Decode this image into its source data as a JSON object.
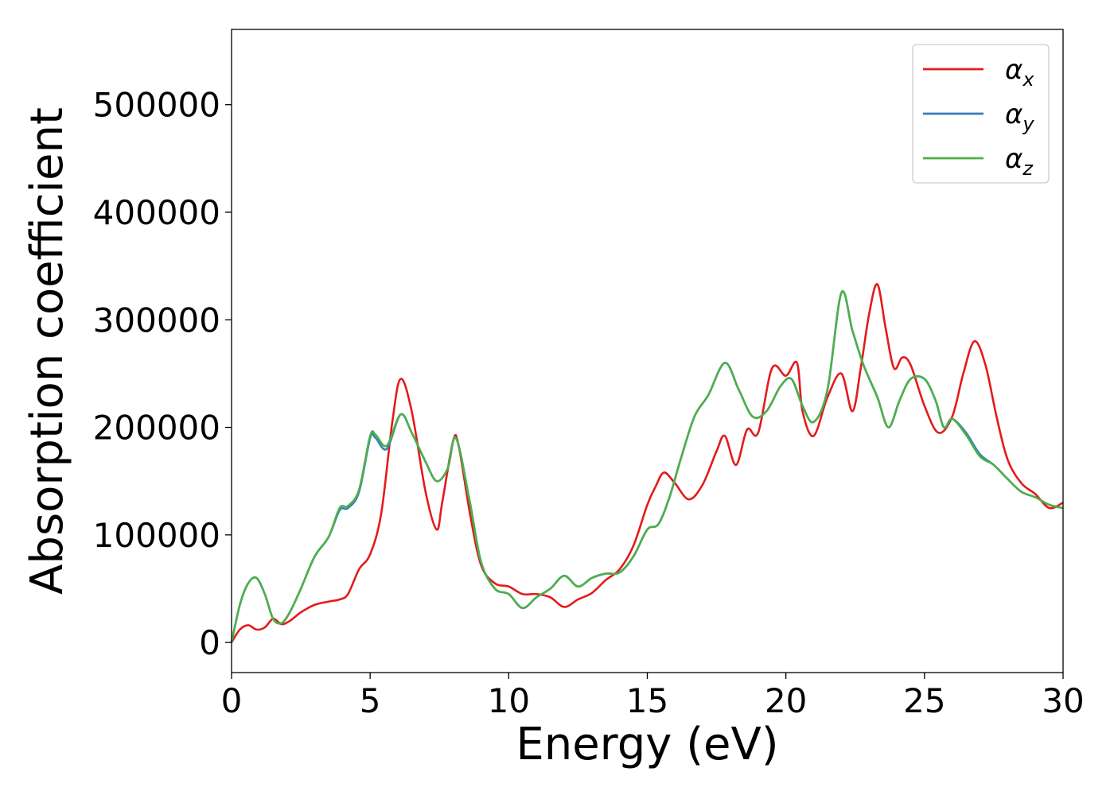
{
  "chart_data": {
    "type": "line",
    "xlabel": "Energy (eV)",
    "ylabel": "Absorption coefficient",
    "xlim": [
      0,
      30
    ],
    "ylim": [
      -28000,
      570000
    ],
    "xticks": [
      0,
      5,
      10,
      15,
      20,
      25,
      30
    ],
    "yticks": [
      0,
      100000,
      200000,
      300000,
      400000,
      500000
    ],
    "grid": false,
    "legend_position": "top-right",
    "series": [
      {
        "name": "αx",
        "base": "α",
        "sub": "x",
        "color": "#e41a1c",
        "x": [
          0,
          0.3,
          0.6,
          0.9,
          1.2,
          1.5,
          1.8,
          2.1,
          2.5,
          3.0,
          3.5,
          3.9,
          4.2,
          4.6,
          5.0,
          5.4,
          5.8,
          6.1,
          6.5,
          7.0,
          7.4,
          7.6,
          8.0,
          8.2,
          8.6,
          9.0,
          9.5,
          10.0,
          10.5,
          11.0,
          11.5,
          12.0,
          12.5,
          13.0,
          13.5,
          14.0,
          14.5,
          15.0,
          15.3,
          15.6,
          16.0,
          16.5,
          17.0,
          17.5,
          17.8,
          18.2,
          18.6,
          19.0,
          19.5,
          20.0,
          20.4,
          20.6,
          21.0,
          21.5,
          22.0,
          22.4,
          22.7,
          23.0,
          23.3,
          23.6,
          23.9,
          24.2,
          24.5,
          25.0,
          25.5,
          26.0,
          26.4,
          26.8,
          27.2,
          27.6,
          28.0,
          28.5,
          29.0,
          29.5,
          30.0
        ],
        "y": [
          0,
          12000,
          16000,
          12000,
          14000,
          22000,
          17000,
          20000,
          28000,
          35000,
          38000,
          40000,
          45000,
          68000,
          82000,
          120000,
          205000,
          245000,
          215000,
          140000,
          105000,
          130000,
          188000,
          182000,
          120000,
          72000,
          55000,
          52000,
          45000,
          45000,
          42000,
          33000,
          40000,
          46000,
          58000,
          68000,
          90000,
          128000,
          145000,
          158000,
          148000,
          133000,
          147000,
          178000,
          192000,
          165000,
          198000,
          195000,
          255000,
          248000,
          260000,
          215000,
          192000,
          228000,
          250000,
          215000,
          255000,
          305000,
          333000,
          292000,
          255000,
          265000,
          258000,
          220000,
          195000,
          210000,
          250000,
          280000,
          258000,
          210000,
          170000,
          148000,
          138000,
          125000,
          130000
        ]
      },
      {
        "name": "αy",
        "base": "α",
        "sub": "y",
        "color": "#377eb8",
        "x": [
          0,
          0.3,
          0.6,
          0.9,
          1.2,
          1.5,
          1.8,
          2.1,
          2.5,
          3.0,
          3.5,
          3.9,
          4.2,
          4.6,
          5.0,
          5.2,
          5.6,
          6.1,
          6.5,
          7.0,
          7.4,
          7.8,
          8.1,
          8.6,
          9.0,
          9.5,
          10.0,
          10.5,
          11.0,
          11.5,
          12.0,
          12.5,
          13.0,
          13.5,
          14.0,
          14.5,
          15.0,
          15.4,
          15.8,
          16.2,
          16.7,
          17.2,
          17.8,
          18.3,
          18.8,
          19.3,
          19.8,
          20.2,
          20.6,
          21.0,
          21.5,
          22.0,
          22.4,
          22.8,
          23.3,
          23.7,
          24.1,
          24.5,
          25.0,
          25.4,
          25.7,
          26.0,
          26.5,
          27.0,
          27.5,
          28.0,
          28.5,
          29.0,
          29.5,
          30.0
        ],
        "y": [
          0,
          35000,
          55000,
          60000,
          45000,
          22000,
          18000,
          28000,
          50000,
          80000,
          98000,
          123000,
          125000,
          140000,
          190000,
          190000,
          180000,
          212000,
          195000,
          168000,
          150000,
          162000,
          190000,
          130000,
          75000,
          50000,
          45000,
          32000,
          42000,
          50000,
          62000,
          52000,
          60000,
          64000,
          65000,
          80000,
          105000,
          110000,
          135000,
          170000,
          210000,
          230000,
          260000,
          235000,
          210000,
          215000,
          238000,
          245000,
          220000,
          205000,
          235000,
          325000,
          290000,
          258000,
          228000,
          200000,
          225000,
          245000,
          245000,
          225000,
          200000,
          208000,
          195000,
          175000,
          165000,
          152000,
          140000,
          135000,
          128000,
          125000
        ]
      },
      {
        "name": "αz",
        "base": "α",
        "sub": "z",
        "color": "#4daf4a",
        "x": [
          0,
          0.3,
          0.6,
          0.9,
          1.2,
          1.5,
          1.8,
          2.1,
          2.5,
          3.0,
          3.5,
          3.9,
          4.2,
          4.6,
          5.0,
          5.2,
          5.6,
          6.1,
          6.5,
          7.0,
          7.4,
          7.8,
          8.1,
          8.6,
          9.0,
          9.5,
          10.0,
          10.5,
          11.0,
          11.5,
          12.0,
          12.5,
          13.0,
          13.5,
          14.0,
          14.5,
          15.0,
          15.4,
          15.8,
          16.2,
          16.7,
          17.2,
          17.8,
          18.3,
          18.8,
          19.3,
          19.8,
          20.2,
          20.6,
          21.0,
          21.5,
          22.0,
          22.4,
          22.8,
          23.3,
          23.7,
          24.1,
          24.5,
          25.0,
          25.4,
          25.7,
          26.0,
          26.5,
          27.0,
          27.5,
          28.0,
          28.5,
          29.0,
          29.5,
          30.0
        ],
        "y": [
          0,
          35000,
          55000,
          60000,
          45000,
          22000,
          18000,
          28000,
          50000,
          80000,
          98000,
          125000,
          127000,
          142000,
          192000,
          193000,
          183000,
          212000,
          195000,
          168000,
          150000,
          162000,
          190000,
          130000,
          75000,
          50000,
          45000,
          32000,
          42000,
          50000,
          62000,
          52000,
          60000,
          64000,
          65000,
          80000,
          105000,
          110000,
          135000,
          170000,
          210000,
          230000,
          260000,
          235000,
          210000,
          215000,
          238000,
          245000,
          220000,
          205000,
          235000,
          325000,
          290000,
          258000,
          228000,
          200000,
          225000,
          245000,
          245000,
          225000,
          200000,
          208000,
          193000,
          173000,
          165000,
          152000,
          140000,
          135000,
          128000,
          125000
        ]
      }
    ]
  }
}
